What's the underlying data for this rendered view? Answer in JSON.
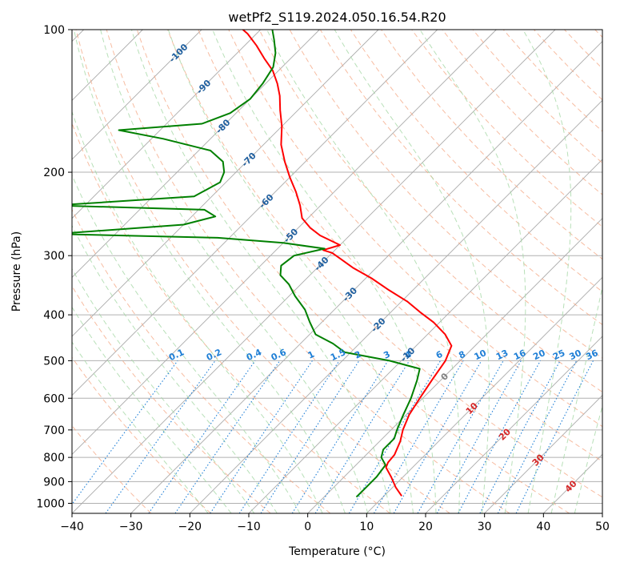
{
  "chart_data": {
    "type": "line",
    "diagram": "skew-t",
    "title": "wetPf2_S119.2024.050.16.54.R20",
    "xlabel": "Temperature (°C)",
    "ylabel": "Pressure (hPa)",
    "xlim": [
      -40,
      50
    ],
    "ylim": [
      1050,
      100
    ],
    "y_scale": "log",
    "grid": true,
    "x_ticks": [
      "−40",
      "−30",
      "−20",
      "−10",
      "0",
      "10",
      "20",
      "30",
      "40",
      "50"
    ],
    "y_ticks": [
      {
        "p": 100,
        "label": "100"
      },
      {
        "p": 200,
        "label": "200"
      },
      {
        "p": 300,
        "label": "300"
      },
      {
        "p": 400,
        "label": "400"
      },
      {
        "p": 500,
        "label": "500"
      },
      {
        "p": 600,
        "label": "600"
      },
      {
        "p": 700,
        "label": "700"
      },
      {
        "p": 800,
        "label": "800"
      },
      {
        "p": 900,
        "label": "900"
      },
      {
        "p": 1000,
        "label": "1000"
      }
    ],
    "colors": {
      "temperature": "#ff0000",
      "dewpoint": "#008000",
      "isotherm": "#aaaaaa",
      "dry_adiabat": "#f4a582",
      "moist_adiabat": "#a6d8a6",
      "mixing_ratio": "#1f7fd6",
      "temp_label": "#1f5f9f",
      "theta_label": "#d62728"
    },
    "isotherm_labels": [
      {
        "t": -100,
        "p": 112,
        "label": "-100"
      },
      {
        "t": -90,
        "p": 132,
        "label": "-90"
      },
      {
        "t": -80,
        "p": 160,
        "label": "-80"
      },
      {
        "t": -70,
        "p": 188,
        "label": "-70"
      },
      {
        "t": -60,
        "p": 230,
        "label": "-60"
      },
      {
        "t": -50,
        "p": 272,
        "label": "-50"
      },
      {
        "t": -40,
        "p": 312,
        "label": "-40"
      },
      {
        "t": -30,
        "p": 362,
        "label": "-30"
      },
      {
        "t": -20,
        "p": 420,
        "label": "-20"
      },
      {
        "t": -10,
        "p": 485,
        "label": "-10"
      },
      {
        "t": 0,
        "p": 540,
        "label": "0"
      },
      {
        "t": 10,
        "p": 630,
        "label": "10"
      },
      {
        "t": 20,
        "p": 715,
        "label": "20"
      },
      {
        "t": 30,
        "p": 810,
        "label": "30"
      },
      {
        "t": 40,
        "p": 920,
        "label": "40"
      }
    ],
    "mixing_ratio_values": [
      0.1,
      0.2,
      0.4,
      0.6,
      1,
      1.5,
      2,
      3,
      4,
      6,
      8,
      10,
      13,
      16,
      20,
      25,
      30,
      36
    ],
    "mixing_ratio_labels": [
      "0.1",
      "0.2",
      "0.4",
      "0.6",
      "1",
      "1.5",
      "2",
      "3",
      "4",
      "6",
      "8",
      "10",
      "13",
      "16",
      "20",
      "25",
      "30",
      "36"
    ],
    "series": [
      {
        "name": "temperature",
        "points": [
          [
            13.0,
            965
          ],
          [
            10.5,
            925
          ],
          [
            8.0,
            880
          ],
          [
            5.5,
            840
          ],
          [
            5.0,
            820
          ],
          [
            4.8,
            790
          ],
          [
            3.5,
            740
          ],
          [
            2.0,
            700
          ],
          [
            0.5,
            650
          ],
          [
            -0.5,
            600
          ],
          [
            -1.5,
            550
          ],
          [
            -2.5,
            500
          ],
          [
            -4.0,
            465
          ],
          [
            -7.0,
            440
          ],
          [
            -11.0,
            415
          ],
          [
            -15.0,
            395
          ],
          [
            -19.0,
            375
          ],
          [
            -24.0,
            355
          ],
          [
            -29.0,
            335
          ],
          [
            -34.0,
            318
          ],
          [
            -37.5,
            305
          ],
          [
            -40.0,
            296
          ],
          [
            -42.0,
            292
          ],
          [
            -40.0,
            285
          ],
          [
            -45.0,
            272
          ],
          [
            -48.0,
            262
          ],
          [
            -51.0,
            250
          ],
          [
            -53.5,
            235
          ],
          [
            -56.5,
            220
          ],
          [
            -60.0,
            205
          ],
          [
            -63.5,
            190
          ],
          [
            -67.0,
            175
          ],
          [
            -70.0,
            160
          ],
          [
            -73.0,
            148
          ],
          [
            -75.5,
            138
          ],
          [
            -78.0,
            130
          ],
          [
            -81.0,
            122
          ],
          [
            -84.5,
            115
          ],
          [
            -88.0,
            108
          ],
          [
            -91.5,
            102
          ],
          [
            -93.0,
            100
          ]
        ]
      },
      {
        "name": "dewpoint",
        "points": [
          [
            5.5,
            970
          ],
          [
            5.5,
            930
          ],
          [
            5.5,
            880
          ],
          [
            5.0,
            830
          ],
          [
            3.0,
            800
          ],
          [
            2.0,
            770
          ],
          [
            2.0,
            730
          ],
          [
            1.0,
            700
          ],
          [
            -0.5,
            650
          ],
          [
            -2.0,
            600
          ],
          [
            -4.0,
            550
          ],
          [
            -5.5,
            520
          ],
          [
            -12.0,
            500
          ],
          [
            -21.0,
            480
          ],
          [
            -24.5,
            460
          ],
          [
            -29.0,
            440
          ],
          [
            -32.0,
            415
          ],
          [
            -35.0,
            390
          ],
          [
            -39.0,
            365
          ],
          [
            -42.0,
            345
          ],
          [
            -45.0,
            330
          ],
          [
            -46.5,
            315
          ],
          [
            -46.0,
            300
          ],
          [
            -42.0,
            290
          ],
          [
            -50.0,
            282
          ],
          [
            -62.0,
            275
          ],
          [
            -90.0,
            270
          ],
          [
            -70.0,
            258
          ],
          [
            -66.0,
            248
          ],
          [
            -69.0,
            240
          ],
          [
            -95.0,
            235
          ],
          [
            -73.0,
            225
          ],
          [
            -71.0,
            210
          ],
          [
            -72.0,
            200
          ],
          [
            -74.0,
            190
          ],
          [
            -78.0,
            180
          ],
          [
            -88.0,
            170
          ],
          [
            -97.0,
            163
          ],
          [
            -84.0,
            158
          ],
          [
            -81.0,
            150
          ],
          [
            -80.0,
            140
          ],
          [
            -80.5,
            130
          ],
          [
            -81.5,
            120
          ],
          [
            -83.5,
            112
          ],
          [
            -86.0,
            105
          ],
          [
            -88.0,
            100
          ]
        ]
      }
    ]
  }
}
